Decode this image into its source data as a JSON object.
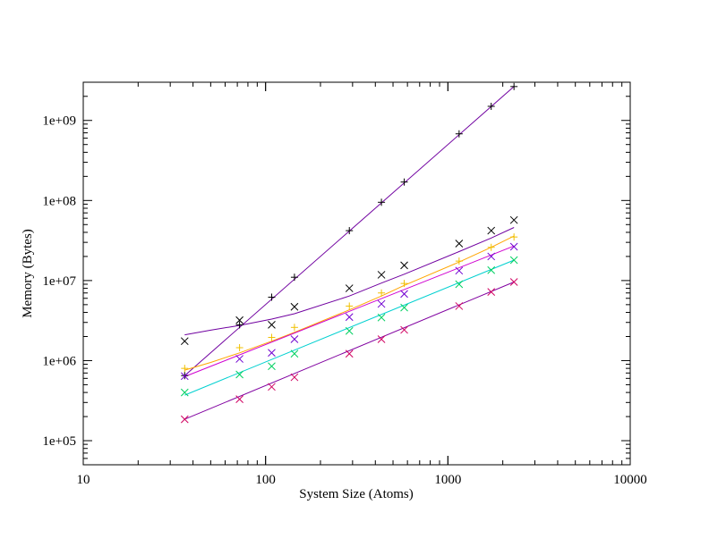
{
  "chart_data": {
    "type": "scatter",
    "title": "",
    "xlabel": "System Size (Atoms)",
    "ylabel": "Memory (Bytes)",
    "x_scale": "log",
    "y_scale": "log",
    "xlim": [
      10,
      10000
    ],
    "ylim": [
      50000,
      3000000000
    ],
    "x_ticks": [
      10,
      100,
      1000,
      10000
    ],
    "x_tick_labels": [
      "10",
      "100",
      "1000",
      "10000"
    ],
    "y_ticks": [
      100000,
      1000000,
      10000000,
      100000000,
      1000000000
    ],
    "y_tick_labels": [
      "1e+05",
      "1e+06",
      "1e+07",
      "1e+08",
      "1e+09"
    ],
    "grid": false,
    "legend": "none",
    "series": [
      {
        "color": "#000000",
        "marker": "plus",
        "x": [
          36,
          72,
          108,
          144,
          288,
          432,
          576,
          1152,
          1728,
          2304
        ],
        "y": [
          650000,
          2800000,
          6200000,
          11000000,
          42000000,
          95000000,
          170000000,
          680000000,
          1500000000,
          2650000000
        ],
        "fit_x": [
          36,
          2304
        ],
        "fit_y": [
          650000,
          2650000000
        ],
        "fit_color": "#7000A0"
      },
      {
        "color": "#000000",
        "marker": "x",
        "x": [
          36,
          72,
          108,
          144,
          288,
          432,
          576,
          1152,
          1728,
          2304
        ],
        "y": [
          1750000,
          3200000,
          2800000,
          4700000,
          8000000,
          11800000,
          15500000,
          29000000,
          42000000,
          57000000
        ],
        "fit_x": [
          36,
          50,
          72,
          108,
          144,
          288,
          432,
          576,
          1152,
          1728,
          2304
        ],
        "fit_y": [
          2100000,
          2400000,
          2750000,
          3300000,
          3850000,
          6400000,
          9300000,
          12000000,
          23000000,
          34000000,
          46000000
        ],
        "fit_color": "#7000A0"
      },
      {
        "color": "#F0C000",
        "marker": "plus",
        "x": [
          36,
          72,
          108,
          144,
          288,
          432,
          576,
          1152,
          1728,
          2304
        ],
        "y": [
          800000,
          1450000,
          1950000,
          2600000,
          4800000,
          7000000,
          9200000,
          17500000,
          26000000,
          35000000
        ],
        "fit_x": [
          36,
          50,
          72,
          108,
          144,
          288,
          432,
          576,
          1152,
          1728,
          2304
        ],
        "fit_y": [
          760000,
          950000,
          1250000,
          1750000,
          2250000,
          4300000,
          6400000,
          8700000,
          17000000,
          26000000,
          36000000
        ],
        "fit_color": "#FFA500"
      },
      {
        "color": "#7000D0",
        "marker": "x",
        "x": [
          36,
          72,
          108,
          144,
          288,
          432,
          576,
          1152,
          1728,
          2304
        ],
        "y": [
          640000,
          1050000,
          1250000,
          1850000,
          3500000,
          5100000,
          6800000,
          13300000,
          20000000,
          26500000
        ],
        "fit_x": [
          36,
          2304
        ],
        "fit_y": [
          630000,
          27000000
        ],
        "fit_color": "#D000D0"
      },
      {
        "color": "#00D060",
        "marker": "x",
        "x": [
          36,
          72,
          108,
          144,
          288,
          432,
          576,
          1152,
          1728,
          2304
        ],
        "y": [
          400000,
          670000,
          850000,
          1220000,
          2350000,
          3450000,
          4600000,
          9000000,
          13500000,
          18000000
        ],
        "fit_x": [
          36,
          2304
        ],
        "fit_y": [
          370000,
          18000000
        ],
        "fit_color": "#00D0D0"
      },
      {
        "color": "#D00060",
        "marker": "x",
        "x": [
          36,
          72,
          108,
          144,
          288,
          432,
          576,
          1152,
          1728,
          2304
        ],
        "y": [
          185000,
          330000,
          470000,
          620000,
          1220000,
          1850000,
          2420000,
          4800000,
          7200000,
          9600000
        ],
        "fit_x": [
          36,
          2304
        ],
        "fit_y": [
          185000,
          9600000
        ],
        "fit_color": "#8000A0"
      }
    ]
  }
}
